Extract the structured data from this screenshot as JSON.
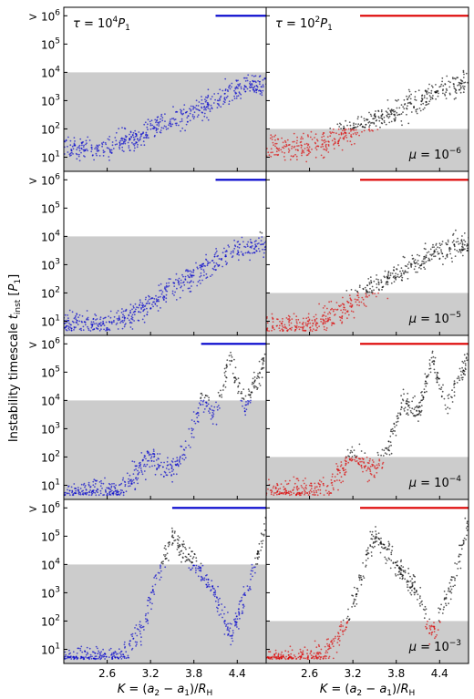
{
  "figure": {
    "ylabel": "Instability timescale t_inst [P_1]",
    "xlabel_left": "K = (a_2 − a_1)/R_H",
    "xlabel_right": "K = (a_2 − a_1)/R_H"
  },
  "chart_data": [
    {
      "type": "scatter",
      "row": 0,
      "col": 0,
      "annotation": "τ = 10^4 P_1",
      "mu_label": "",
      "threshold": 10000,
      "colors": {
        "unstable": "#0000cc",
        "stable": "#000000"
      },
      "x_ticks": [
        "2.6",
        "3.2",
        "3.8",
        "4.4"
      ],
      "y_ticks": [
        "10^1",
        "10^2",
        "10^3",
        "10^4",
        "10^5",
        "> 10^6"
      ],
      "xlim": [
        2.0,
        4.8
      ],
      "ylim_log10": [
        0.5,
        6.3
      ],
      "trend": [
        [
          2.0,
          1.3
        ],
        [
          2.6,
          1.35
        ],
        [
          3.0,
          1.7
        ],
        [
          3.4,
          2.2
        ],
        [
          3.8,
          2.6
        ],
        [
          4.1,
          3.0
        ],
        [
          4.4,
          3.4
        ],
        [
          4.8,
          3.6
        ]
      ]
    },
    {
      "type": "scatter",
      "row": 0,
      "col": 1,
      "annotation": "τ = 10^2 P_1",
      "mu_label": "μ = 10^−6",
      "threshold": 100,
      "colors": {
        "unstable": "#dd0000",
        "stable": "#000000"
      },
      "x_ticks": [
        "2.6",
        "3.2",
        "3.8",
        "4.4"
      ],
      "y_ticks": [],
      "xlim": [
        2.0,
        4.8
      ],
      "ylim_log10": [
        0.5,
        6.3
      ],
      "trend": [
        [
          2.0,
          1.3
        ],
        [
          2.6,
          1.35
        ],
        [
          3.0,
          1.7
        ],
        [
          3.4,
          2.2
        ],
        [
          3.8,
          2.6
        ],
        [
          4.1,
          3.0
        ],
        [
          4.4,
          3.4
        ],
        [
          4.8,
          3.6
        ]
      ]
    },
    {
      "type": "scatter",
      "row": 1,
      "col": 0,
      "annotation": "",
      "mu_label": "",
      "threshold": 10000,
      "colors": {
        "unstable": "#0000cc",
        "stable": "#000000"
      },
      "x_ticks": [
        "2.6",
        "3.2",
        "3.8",
        "4.4"
      ],
      "y_ticks": [
        "10^1",
        "10^2",
        "10^3",
        "10^4",
        "10^5",
        "> 10^6"
      ],
      "xlim": [
        2.0,
        4.8
      ],
      "ylim_log10": [
        0.5,
        6.3
      ],
      "trend": [
        [
          2.0,
          0.9
        ],
        [
          2.6,
          0.9
        ],
        [
          3.0,
          1.3
        ],
        [
          3.4,
          2.0
        ],
        [
          3.8,
          2.6
        ],
        [
          4.1,
          3.1
        ],
        [
          4.4,
          3.5
        ],
        [
          4.8,
          3.7
        ]
      ]
    },
    {
      "type": "scatter",
      "row": 1,
      "col": 1,
      "annotation": "",
      "mu_label": "μ = 10^−5",
      "threshold": 100,
      "colors": {
        "unstable": "#dd0000",
        "stable": "#000000"
      },
      "x_ticks": [
        "2.6",
        "3.2",
        "3.8",
        "4.4"
      ],
      "y_ticks": [],
      "xlim": [
        2.0,
        4.8
      ],
      "ylim_log10": [
        0.5,
        6.3
      ],
      "trend": [
        [
          2.0,
          0.9
        ],
        [
          2.6,
          0.9
        ],
        [
          3.0,
          1.3
        ],
        [
          3.4,
          2.0
        ],
        [
          3.8,
          2.6
        ],
        [
          4.1,
          3.1
        ],
        [
          4.4,
          3.5
        ],
        [
          4.8,
          3.7
        ]
      ]
    },
    {
      "type": "scatter",
      "row": 2,
      "col": 0,
      "annotation": "",
      "mu_label": "",
      "threshold": 10000,
      "colors": {
        "unstable": "#0000cc",
        "stable": "#000000"
      },
      "x_ticks": [
        "2.6",
        "3.2",
        "3.8",
        "4.4"
      ],
      "y_ticks": [
        "10^1",
        "10^2",
        "10^3",
        "10^4",
        "10^5",
        "> 10^6"
      ],
      "xlim": [
        2.0,
        4.8
      ],
      "ylim_log10": [
        0.5,
        6.3
      ],
      "trend": [
        [
          2.0,
          0.8
        ],
        [
          2.8,
          0.8
        ],
        [
          3.2,
          2.0
        ],
        [
          3.5,
          1.5
        ],
        [
          3.7,
          2.3
        ],
        [
          3.9,
          4.0
        ],
        [
          4.1,
          3.5
        ],
        [
          4.3,
          5.5
        ],
        [
          4.5,
          3.8
        ],
        [
          4.8,
          5.5
        ]
      ]
    },
    {
      "type": "scatter",
      "row": 2,
      "col": 1,
      "annotation": "",
      "mu_label": "μ = 10^−4",
      "threshold": 100,
      "colors": {
        "unstable": "#dd0000",
        "stable": "#000000"
      },
      "x_ticks": [
        "2.6",
        "3.2",
        "3.8",
        "4.4"
      ],
      "y_ticks": [],
      "xlim": [
        2.0,
        4.8
      ],
      "ylim_log10": [
        0.5,
        6.3
      ],
      "trend": [
        [
          2.0,
          0.8
        ],
        [
          2.8,
          0.8
        ],
        [
          3.2,
          2.0
        ],
        [
          3.5,
          1.5
        ],
        [
          3.7,
          2.3
        ],
        [
          3.9,
          4.0
        ],
        [
          4.1,
          3.5
        ],
        [
          4.3,
          5.5
        ],
        [
          4.5,
          3.8
        ],
        [
          4.8,
          5.5
        ]
      ]
    },
    {
      "type": "scatter",
      "row": 3,
      "col": 0,
      "annotation": "",
      "mu_label": "",
      "threshold": 10000,
      "colors": {
        "unstable": "#0000cc",
        "stable": "#000000"
      },
      "x_ticks": [
        "2.6",
        "3.2",
        "3.8",
        "4.4"
      ],
      "y_ticks": [
        "10^1",
        "10^2",
        "10^3",
        "10^4",
        "10^5",
        "> 10^6"
      ],
      "xlim": [
        2.0,
        4.8
      ],
      "ylim_log10": [
        0.5,
        6.3
      ],
      "trend": [
        [
          2.0,
          0.6
        ],
        [
          2.8,
          0.8
        ],
        [
          3.1,
          1.8
        ],
        [
          3.3,
          3.5
        ],
        [
          3.5,
          5.0
        ],
        [
          3.8,
          4.0
        ],
        [
          4.1,
          3.0
        ],
        [
          4.3,
          1.5
        ],
        [
          4.6,
          3.5
        ],
        [
          4.8,
          5.5
        ]
      ]
    },
    {
      "type": "scatter",
      "row": 3,
      "col": 1,
      "annotation": "",
      "mu_label": "μ = 10^−3",
      "threshold": 100,
      "colors": {
        "unstable": "#dd0000",
        "stable": "#000000"
      },
      "x_ticks": [
        "2.6",
        "3.2",
        "3.8",
        "4.4"
      ],
      "y_ticks": [],
      "xlim": [
        2.0,
        4.8
      ],
      "ylim_log10": [
        0.5,
        6.3
      ],
      "trend": [
        [
          2.0,
          0.6
        ],
        [
          2.8,
          0.8
        ],
        [
          3.1,
          1.8
        ],
        [
          3.3,
          3.5
        ],
        [
          3.5,
          5.0
        ],
        [
          3.8,
          4.0
        ],
        [
          4.1,
          3.0
        ],
        [
          4.3,
          1.5
        ],
        [
          4.6,
          3.5
        ],
        [
          4.8,
          5.5
        ]
      ]
    }
  ]
}
